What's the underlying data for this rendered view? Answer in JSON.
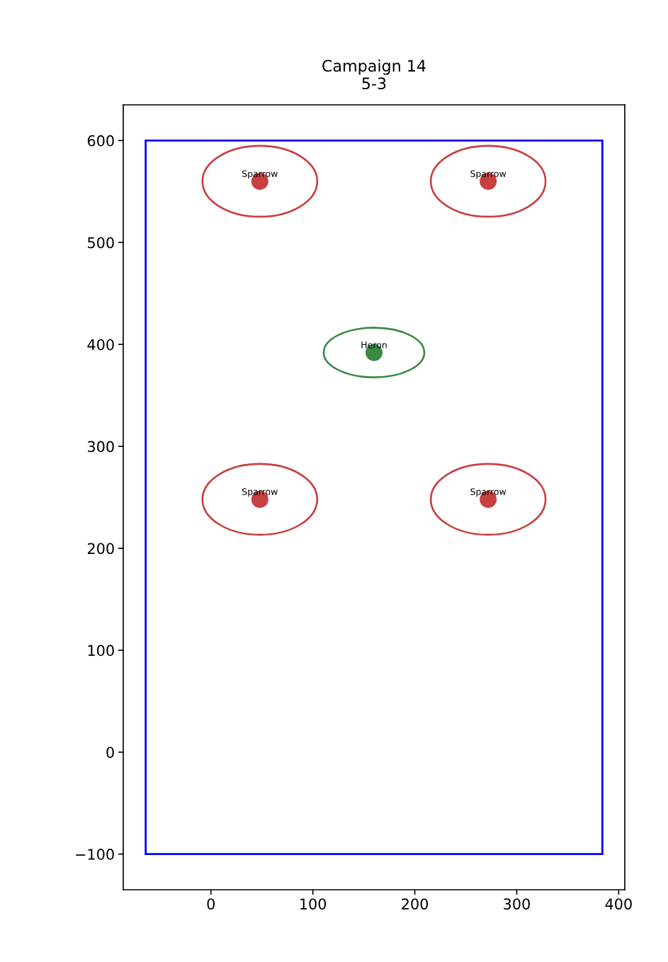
{
  "chart_data": {
    "type": "scatter",
    "title": "Campaign 14",
    "subtitle": "5-3",
    "xlim": [
      -86,
      406
    ],
    "ylim": [
      -135,
      635
    ],
    "xticks": [
      0,
      100,
      200,
      300,
      400
    ],
    "yticks": [
      {
        "value": -100,
        "label": "−100"
      },
      0,
      100,
      200,
      300,
      400,
      500,
      600
    ],
    "grid": false,
    "legend": false,
    "marker": "circle",
    "series": [
      {
        "type": "line",
        "color": "#0000ff",
        "line_style": "solid",
        "marker": "none",
        "x": [
          -64,
          384
        ],
        "values": [
          -100,
          -100
        ]
      },
      {
        "type": "line",
        "color": "#0000ff",
        "line_style": "solid",
        "marker": "none",
        "x": [
          384,
          384
        ],
        "values": [
          -100,
          600
        ]
      },
      {
        "type": "line",
        "color": "#0000ff",
        "line_style": "solid",
        "marker": "none",
        "x": [
          -64,
          384
        ],
        "values": [
          600,
          600
        ]
      },
      {
        "type": "line",
        "color": "#0000ff",
        "line_style": "solid",
        "marker": "none",
        "x": [
          -64,
          -64
        ],
        "values": [
          -100,
          600
        ]
      },
      {
        "type": "scatter",
        "name": "Sparrow",
        "color": "#c84040",
        "x": [
          48,
          272,
          48,
          272
        ],
        "values": [
          560,
          560,
          248,
          248
        ]
      },
      {
        "type": "scatter",
        "name": "Heron",
        "color": "#3a8a45",
        "x": [
          160
        ],
        "values": [
          392
        ]
      }
    ]
  }
}
